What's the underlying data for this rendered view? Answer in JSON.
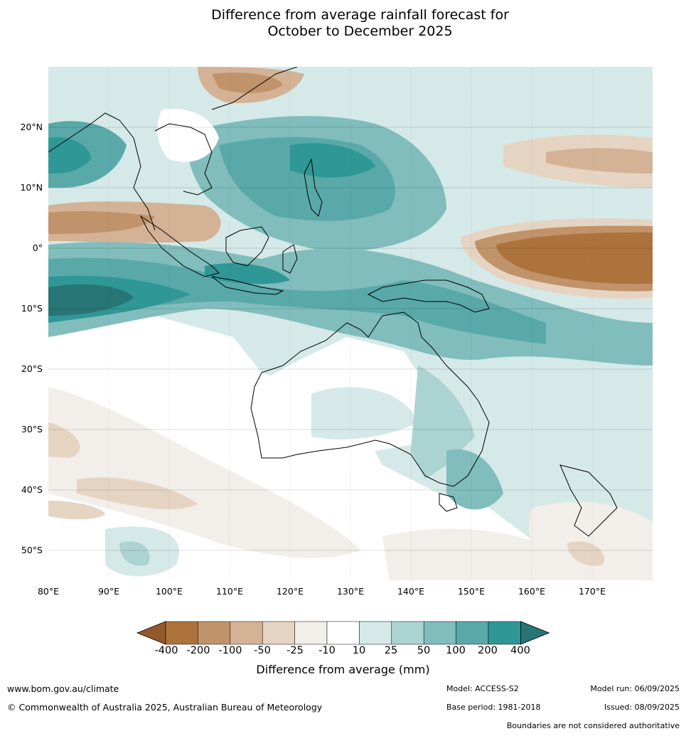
{
  "title_line1": "Difference from average rainfall forecast for",
  "title_line2": "October to December 2025",
  "lat_ticks": [
    "20°N",
    "10°N",
    "0°",
    "10°S",
    "20°S",
    "30°S",
    "40°S",
    "50°S"
  ],
  "lon_ticks": [
    "80°E",
    "90°E",
    "100°E",
    "110°E",
    "120°E",
    "130°E",
    "140°E",
    "150°E",
    "160°E",
    "170°E"
  ],
  "colorbar": {
    "labels": [
      "-400",
      "-200",
      "-100",
      "-50",
      "-25",
      "-10",
      "10",
      "25",
      "50",
      "100",
      "200",
      "400"
    ],
    "colors": [
      "#94592b",
      "#ad733d",
      "#c1936a",
      "#d3b295",
      "#e6d4c3",
      "#f2eee9",
      "#ffffff",
      "#d5e9e8",
      "#abd3d2",
      "#80bdbc",
      "#59a9a9",
      "#2f9796",
      "#277575"
    ],
    "title": "Difference from average (mm)"
  },
  "footer": {
    "url": "www.bom.gov.au/climate",
    "copyright": "© Commonwealth of Australia 2025, Australian Bureau of Meteorology",
    "model": "Model: ACCESS-S2",
    "base_period": "Base period: 1981-2018",
    "model_run": "Model run: 06/09/2025",
    "issued": "Issued: 08/09/2025",
    "boundaries": "Boundaries are not considered authoritative"
  }
}
